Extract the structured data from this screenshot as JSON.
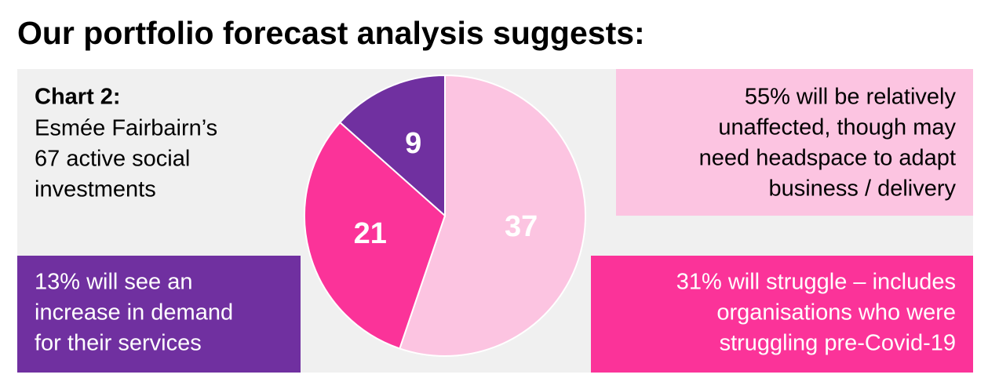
{
  "chart_data": {
    "type": "pie",
    "title": "Our portfolio forecast analysis suggests:",
    "label": "Chart 2:",
    "subtitle": [
      "Esmée Fairbairn’s",
      "67 active social",
      "investments"
    ],
    "values": [
      37,
      21,
      9
    ],
    "colors": [
      "#fcc4e1",
      "#fb3399",
      "#7030a0"
    ],
    "annotations": [
      {
        "lines": [
          "55% will be relatively",
          "unaffected, though may",
          "need headspace to adapt",
          "business / delivery"
        ],
        "color": "#fcc4e1",
        "text_color": "#000000"
      },
      {
        "lines": [
          "31% will struggle – includes",
          "organisations who were",
          "struggling pre-Covid-19"
        ],
        "color": "#fb3399",
        "text_color": "#ffffff"
      },
      {
        "lines": [
          "13% will see an",
          "increase in demand",
          "for their services"
        ],
        "color": "#7030a0",
        "text_color": "#ffffff"
      }
    ]
  }
}
